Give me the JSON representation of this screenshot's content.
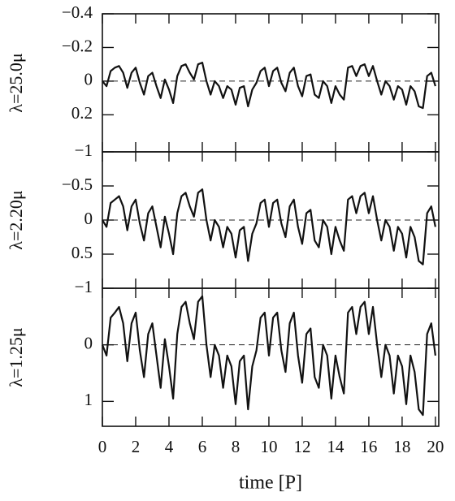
{
  "chart_data": {
    "type": "line",
    "xlabel": "time [P]",
    "xlim": [
      0,
      20.2
    ],
    "xticks": [
      0,
      2,
      4,
      6,
      8,
      10,
      12,
      14,
      16,
      18,
      20
    ],
    "reference_line": 0,
    "color": "#111111",
    "x": [
      0,
      0.25,
      0.5,
      0.75,
      1,
      1.25,
      1.5,
      1.75,
      2,
      2.25,
      2.5,
      2.75,
      3,
      3.25,
      3.5,
      3.75,
      4,
      4.25,
      4.5,
      4.75,
      5,
      5.25,
      5.5,
      5.75,
      6,
      6.25,
      6.5,
      6.75,
      7,
      7.25,
      7.5,
      7.75,
      8,
      8.25,
      8.5,
      8.75,
      9,
      9.25,
      9.5,
      9.75,
      10,
      10.25,
      10.5,
      10.75,
      11,
      11.25,
      11.5,
      11.75,
      12,
      12.25,
      12.5,
      12.75,
      13,
      13.25,
      13.5,
      13.75,
      14,
      14.25,
      14.5,
      14.75,
      15,
      15.25,
      15.5,
      15.75,
      16,
      16.25,
      16.5,
      16.75,
      17,
      17.25,
      17.5,
      17.75,
      18,
      18.25,
      18.5,
      18.75,
      19,
      19.25,
      19.5,
      19.75,
      20
    ],
    "panels": [
      {
        "ylabel": "λ=25.0μ",
        "ylim": [
          -0.4,
          0.42
        ],
        "yticks": [
          {
            "value": -0.4,
            "label": "−0.4"
          },
          {
            "value": -0.2,
            "label": "−0.2"
          },
          0,
          0.2
        ],
        "values": [
          0,
          0.03,
          -0.06,
          -0.08,
          -0.09,
          -0.05,
          0.04,
          -0.05,
          -0.08,
          0.01,
          0.08,
          -0.03,
          -0.05,
          0.03,
          0.1,
          -0.01,
          0.05,
          0.13,
          -0.03,
          -0.09,
          -0.1,
          -0.05,
          -0.01,
          -0.1,
          -0.11,
          0,
          0.08,
          0,
          0.03,
          0.1,
          0.03,
          0.05,
          0.14,
          0.04,
          0.03,
          0.15,
          0.05,
          0.01,
          -0.06,
          -0.08,
          0.03,
          -0.06,
          -0.08,
          0.01,
          0.06,
          -0.05,
          -0.08,
          0.03,
          0.09,
          -0.03,
          -0.04,
          0.08,
          0.1,
          0,
          0.03,
          0.13,
          0.03,
          0.08,
          0.11,
          -0.08,
          -0.09,
          -0.03,
          -0.09,
          -0.1,
          -0.03,
          -0.09,
          0,
          0.08,
          0,
          0.03,
          0.11,
          0.03,
          0.05,
          0.14,
          0.03,
          0.06,
          0.15,
          0.16,
          -0.03,
          -0.05,
          0.03
        ]
      },
      {
        "ylabel": "λ=2.20μ",
        "ylim": [
          -1,
          1
        ],
        "yticks": [
          {
            "value": -1,
            "label": "−1"
          },
          {
            "value": -0.5,
            "label": "−0.5"
          },
          0,
          0.5
        ],
        "values": [
          0,
          0.1,
          -0.25,
          -0.3,
          -0.35,
          -0.2,
          0.15,
          -0.2,
          -0.3,
          0.05,
          0.3,
          -0.1,
          -0.2,
          0.1,
          0.4,
          -0.05,
          0.2,
          0.5,
          -0.1,
          -0.35,
          -0.4,
          -0.2,
          -0.05,
          -0.4,
          -0.45,
          0,
          0.3,
          0,
          0.1,
          0.4,
          0.1,
          0.2,
          0.55,
          0.15,
          0.1,
          0.6,
          0.2,
          0.05,
          -0.25,
          -0.3,
          0.1,
          -0.25,
          -0.3,
          0.05,
          0.25,
          -0.2,
          -0.3,
          0.1,
          0.35,
          -0.1,
          -0.15,
          0.3,
          0.4,
          0,
          0.1,
          0.5,
          0.1,
          0.3,
          0.45,
          -0.3,
          -0.35,
          -0.1,
          -0.35,
          -0.4,
          -0.1,
          -0.35,
          0,
          0.3,
          0,
          0.1,
          0.45,
          0.1,
          0.2,
          0.55,
          0.1,
          0.25,
          0.6,
          0.65,
          -0.1,
          -0.2,
          0.1
        ]
      },
      {
        "ylabel": "λ=1.25μ",
        "ylim": [
          -1,
          1.44
        ],
        "yticks": [
          {
            "value": -1,
            "label": "−1"
          },
          0,
          1
        ],
        "values": [
          0,
          0.19,
          -0.48,
          -0.57,
          -0.67,
          -0.38,
          0.29,
          -0.38,
          -0.57,
          0.1,
          0.57,
          -0.19,
          -0.38,
          0.19,
          0.76,
          -0.1,
          0.38,
          0.95,
          -0.19,
          -0.67,
          -0.76,
          -0.38,
          -0.1,
          -0.76,
          -0.86,
          0,
          0.57,
          0,
          0.19,
          0.76,
          0.19,
          0.38,
          1.05,
          0.29,
          0.19,
          1.14,
          0.38,
          0.1,
          -0.48,
          -0.57,
          0.19,
          -0.48,
          -0.57,
          0.1,
          0.48,
          -0.38,
          -0.57,
          0.19,
          0.67,
          -0.19,
          -0.29,
          0.57,
          0.76,
          0,
          0.19,
          0.95,
          0.19,
          0.57,
          0.86,
          -0.57,
          -0.67,
          -0.19,
          -0.67,
          -0.76,
          -0.19,
          -0.67,
          0,
          0.57,
          0,
          0.19,
          0.86,
          0.19,
          0.38,
          1.05,
          0.19,
          0.48,
          1.14,
          1.24,
          -0.19,
          -0.38,
          0.19
        ]
      }
    ]
  }
}
